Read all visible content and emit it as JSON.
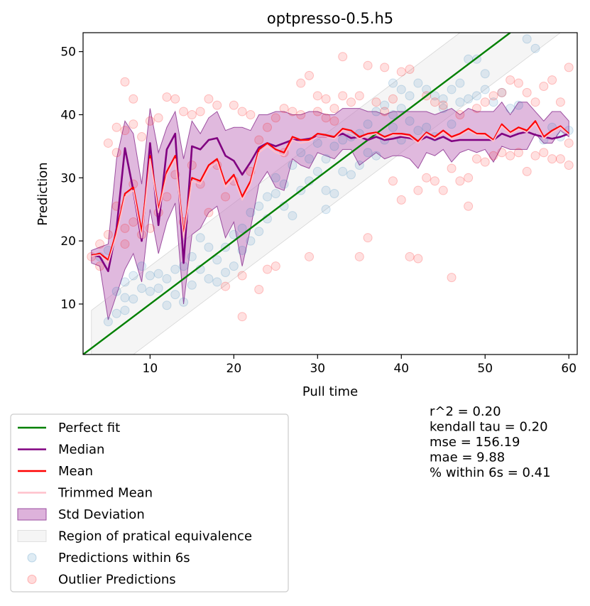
{
  "chart_data": {
    "type": "scatter",
    "title": "optpresso-0.5.h5",
    "xlabel": "Pull time",
    "ylabel": "Prediction",
    "xlim": [
      2,
      61
    ],
    "ylim": [
      2,
      53
    ],
    "xticks": [
      "10",
      "20",
      "30",
      "40",
      "50",
      "60"
    ],
    "xtick_values": [
      10,
      20,
      30,
      40,
      50,
      60
    ],
    "yticks": [
      "10",
      "20",
      "30",
      "40",
      "50"
    ],
    "ytick_values": [
      10,
      20,
      30,
      40,
      50
    ],
    "grid": false,
    "legend_position": "below-left",
    "equivalence_margin": 6,
    "colors": {
      "perfect_fit": "#008000",
      "median": "#800080",
      "mean": "#ff0000",
      "trimmed_mean": "#ffc0cb",
      "std_fill": "#c77fc3",
      "rope_fill": "#ececec",
      "within": "#1f77b4",
      "outlier": "#ff0000"
    },
    "stats": [
      "r^2 = 0.20",
      "kendall tau = 0.20",
      "mse = 156.19",
      "mae = 9.88",
      "% within 6s = 0.41"
    ],
    "legend": [
      {
        "label": "Perfect fit",
        "kind": "line",
        "color": "#008000"
      },
      {
        "label": "Median",
        "kind": "line",
        "color": "#800080"
      },
      {
        "label": "Mean",
        "kind": "line",
        "color": "#ff0000"
      },
      {
        "label": "Trimmed Mean",
        "kind": "line",
        "color": "#ffc0cb"
      },
      {
        "label": "Std Deviation",
        "kind": "patch",
        "color": "#c77fc3"
      },
      {
        "label": "Region of pratical equivalence",
        "kind": "patch",
        "color": "#ececec"
      },
      {
        "label": "Predictions within 6s",
        "kind": "marker",
        "color": "#1f77b4"
      },
      {
        "label": "Outlier Predictions",
        "kind": "marker",
        "color": "#ff0000"
      }
    ],
    "series_lines": {
      "x": [
        3,
        4,
        5,
        6,
        7,
        8,
        9,
        10,
        11,
        12,
        13,
        14,
        15,
        16,
        17,
        18,
        19,
        20,
        21,
        22,
        23,
        24,
        25,
        26,
        27,
        28,
        29,
        30,
        31,
        32,
        33,
        34,
        35,
        36,
        37,
        38,
        39,
        40,
        41,
        42,
        43,
        44,
        45,
        46,
        47,
        48,
        49,
        50,
        51,
        52,
        53,
        54,
        55,
        56,
        57,
        58,
        59,
        60
      ],
      "median": [
        17.8,
        17.5,
        15.2,
        22.0,
        34.7,
        28.0,
        20.0,
        35.5,
        22.5,
        34.5,
        37.0,
        16.5,
        35.0,
        34.5,
        36.0,
        36.3,
        33.5,
        32.7,
        30.5,
        32.5,
        34.8,
        35.5,
        35.0,
        35.5,
        36.0,
        36.0,
        36.2,
        36.5,
        36.5,
        36.5,
        37.0,
        36.3,
        36.5,
        36.0,
        36.5,
        36.0,
        36.2,
        36.5,
        36.3,
        35.8,
        36.5,
        36.0,
        36.5,
        35.8,
        36.0,
        36.0,
        36.0,
        36.0,
        36.0,
        37.0,
        36.5,
        37.0,
        37.3,
        36.8,
        36.5,
        36.2,
        36.5,
        37.0
      ],
      "mean": [
        17.7,
        18.0,
        17.0,
        21.5,
        27.5,
        28.5,
        21.5,
        33.5,
        25.0,
        31.0,
        33.5,
        21.0,
        30.0,
        29.5,
        32.0,
        33.0,
        29.0,
        30.5,
        27.0,
        29.5,
        34.5,
        35.5,
        34.5,
        34.0,
        36.5,
        36.0,
        36.0,
        37.0,
        36.8,
        36.5,
        37.8,
        37.5,
        36.5,
        37.0,
        37.2,
        36.5,
        37.0,
        37.0,
        36.8,
        35.8,
        37.2,
        36.5,
        37.5,
        36.5,
        37.0,
        37.8,
        37.0,
        37.0,
        36.0,
        38.5,
        37.2,
        38.0,
        37.5,
        39.0,
        36.5,
        37.5,
        38.2,
        37.0
      ],
      "trimmed_mean": [
        17.6,
        17.8,
        16.5,
        21.0,
        27.0,
        28.0,
        20.5,
        33.0,
        24.5,
        30.5,
        33.0,
        20.5,
        29.5,
        29.0,
        31.5,
        32.5,
        28.5,
        30.0,
        26.5,
        29.0,
        34.0,
        35.0,
        34.0,
        33.5,
        36.0,
        35.5,
        35.8,
        36.5,
        36.5,
        36.2,
        37.5,
        37.0,
        36.2,
        36.7,
        37.0,
        36.2,
        36.8,
        36.7,
        36.5,
        35.5,
        37.0,
        36.2,
        37.2,
        36.2,
        36.7,
        37.5,
        36.8,
        36.7,
        35.8,
        38.2,
        37.0,
        37.7,
        37.2,
        38.6,
        36.2,
        37.2,
        38.0,
        36.8
      ],
      "std_upper": [
        18.5,
        19.0,
        19.5,
        33.0,
        39.0,
        37.0,
        29.0,
        41.0,
        34.0,
        38.0,
        40.5,
        33.0,
        39.0,
        37.0,
        39.5,
        40.5,
        37.5,
        38.0,
        38.0,
        37.5,
        40.0,
        40.0,
        40.5,
        40.5,
        40.0,
        40.0,
        40.5,
        40.5,
        40.0,
        40.0,
        41.0,
        41.0,
        41.0,
        40.5,
        40.5,
        40.0,
        40.5,
        40.5,
        40.5,
        40.5,
        40.5,
        40.0,
        40.5,
        41.0,
        40.0,
        41.0,
        40.5,
        40.5,
        40.5,
        42.0,
        40.0,
        42.0,
        42.0,
        40.5,
        39.0,
        40.5,
        40.5,
        39.0
      ],
      "std_lower": [
        16.5,
        16.0,
        7.5,
        11.5,
        15.5,
        18.0,
        13.5,
        25.0,
        18.0,
        23.0,
        26.0,
        10.0,
        21.0,
        22.0,
        24.5,
        25.5,
        20.5,
        23.0,
        16.0,
        22.0,
        29.0,
        31.0,
        28.5,
        28.0,
        33.0,
        32.0,
        31.5,
        34.0,
        33.5,
        33.0,
        34.5,
        34.5,
        32.0,
        33.0,
        34.0,
        33.0,
        33.5,
        33.5,
        33.0,
        31.5,
        34.0,
        33.5,
        34.5,
        32.5,
        34.0,
        34.5,
        34.0,
        34.5,
        32.5,
        35.0,
        34.5,
        34.5,
        34.5,
        37.0,
        35.5,
        35.5,
        37.5,
        36.5
      ]
    },
    "within_points": [
      [
        4,
        17.5
      ],
      [
        5,
        7.2
      ],
      [
        5,
        18.5
      ],
      [
        6,
        8.5
      ],
      [
        6,
        12.0
      ],
      [
        7,
        9.0
      ],
      [
        7,
        11.0
      ],
      [
        7,
        13.5
      ],
      [
        8,
        10.8
      ],
      [
        8,
        14.5
      ],
      [
        9,
        12.5
      ],
      [
        9,
        16.0
      ],
      [
        10,
        12.0
      ],
      [
        10,
        14.5
      ],
      [
        11,
        12.5
      ],
      [
        11,
        14.8
      ],
      [
        12,
        9.8
      ],
      [
        12,
        14.0
      ],
      [
        13,
        11.5
      ],
      [
        13,
        15.5
      ],
      [
        14,
        10.3
      ],
      [
        14,
        16.0
      ],
      [
        15,
        13.0
      ],
      [
        15,
        17.5
      ],
      [
        16,
        15.5
      ],
      [
        16,
        20.5
      ],
      [
        17,
        14.0
      ],
      [
        17,
        19.0
      ],
      [
        18,
        13.5
      ],
      [
        18,
        17.0
      ],
      [
        19,
        15.0
      ],
      [
        19,
        19.0
      ],
      [
        20,
        16.0
      ],
      [
        20,
        21.0
      ],
      [
        21,
        18.5
      ],
      [
        21,
        22.0
      ],
      [
        22,
        20.0
      ],
      [
        22,
        24.5
      ],
      [
        23,
        21.5
      ],
      [
        23,
        25.5
      ],
      [
        24,
        27.0
      ],
      [
        24,
        23.5
      ],
      [
        25,
        27.5
      ],
      [
        25,
        30.0
      ],
      [
        26,
        25.5
      ],
      [
        26,
        29.0
      ],
      [
        27,
        24.0
      ],
      [
        27,
        32.0
      ],
      [
        28,
        28.0
      ],
      [
        28,
        34.0
      ],
      [
        29,
        29.5
      ],
      [
        29,
        33.0
      ],
      [
        30,
        31.0
      ],
      [
        30,
        35.5
      ],
      [
        31,
        25.0
      ],
      [
        31,
        28.0
      ],
      [
        31,
        33.0
      ],
      [
        32,
        27.5
      ],
      [
        32,
        35.0
      ],
      [
        33,
        31.0
      ],
      [
        33,
        36.0
      ],
      [
        34,
        30.5
      ],
      [
        34,
        36.5
      ],
      [
        35,
        32.0
      ],
      [
        35,
        37.0
      ],
      [
        36,
        34.0
      ],
      [
        36,
        38.5
      ],
      [
        37,
        33.5
      ],
      [
        37,
        40.5
      ],
      [
        38,
        36.0
      ],
      [
        38,
        41.5
      ],
      [
        39,
        38.0
      ],
      [
        39,
        40.0
      ],
      [
        39,
        45.0
      ],
      [
        40,
        36.0
      ],
      [
        40,
        41.0
      ],
      [
        40,
        44.0
      ],
      [
        41,
        39.0
      ],
      [
        41,
        43.0
      ],
      [
        42,
        37.5
      ],
      [
        42,
        45.0
      ],
      [
        43,
        38.0
      ],
      [
        43,
        44.0
      ],
      [
        44,
        36.5
      ],
      [
        44,
        43.0
      ],
      [
        45,
        41.0
      ],
      [
        45,
        42.5
      ],
      [
        46,
        38.5
      ],
      [
        46,
        44.0
      ],
      [
        47,
        42.0
      ],
      [
        47,
        45.0
      ],
      [
        48,
        42.5
      ],
      [
        48,
        48.8
      ],
      [
        49,
        43.0
      ],
      [
        49,
        48.8
      ],
      [
        50,
        44.0
      ],
      [
        50,
        46.5
      ],
      [
        51,
        42.0
      ],
      [
        52,
        43.5
      ],
      [
        53,
        41.0
      ],
      [
        54,
        41.5
      ],
      [
        55,
        52.0
      ],
      [
        56,
        50.5
      ],
      [
        57,
        36.0
      ],
      [
        58,
        38.0
      ],
      [
        59,
        36.5
      ],
      [
        60,
        37.5
      ]
    ],
    "outlier_points": [
      [
        3,
        17.5
      ],
      [
        4,
        16.0
      ],
      [
        4,
        19.5
      ],
      [
        5,
        21.0
      ],
      [
        5,
        35.5
      ],
      [
        6,
        25.5
      ],
      [
        6,
        34.0
      ],
      [
        6,
        38.0
      ],
      [
        7,
        19.5
      ],
      [
        7,
        22.0
      ],
      [
        7,
        37.5
      ],
      [
        7,
        45.2
      ],
      [
        8,
        23.0
      ],
      [
        8,
        29.0
      ],
      [
        8,
        38.5
      ],
      [
        8,
        42.5
      ],
      [
        9,
        21.0
      ],
      [
        9,
        36.5
      ],
      [
        10,
        22.0
      ],
      [
        10,
        39.0
      ],
      [
        11,
        24.5
      ],
      [
        11,
        39.5
      ],
      [
        12,
        27.0
      ],
      [
        12,
        42.8
      ],
      [
        13,
        30.5
      ],
      [
        13,
        42.5
      ],
      [
        14,
        23.0
      ],
      [
        14,
        40.5
      ],
      [
        15,
        32.0
      ],
      [
        15,
        40.0
      ],
      [
        16,
        29.0
      ],
      [
        16,
        40.5
      ],
      [
        17,
        24.5
      ],
      [
        17,
        42.5
      ],
      [
        18,
        32.0
      ],
      [
        18,
        41.5
      ],
      [
        19,
        12.8
      ],
      [
        19,
        27.0
      ],
      [
        20,
        29.5
      ],
      [
        20,
        41.5
      ],
      [
        21,
        8.0
      ],
      [
        21,
        14.5
      ],
      [
        21,
        40.5
      ],
      [
        22,
        31.0
      ],
      [
        22,
        40.0
      ],
      [
        23,
        12.3
      ],
      [
        23,
        36.0
      ],
      [
        24,
        15.5
      ],
      [
        24,
        38.0
      ],
      [
        25,
        16.0
      ],
      [
        25,
        39.5
      ],
      [
        26,
        34.0
      ],
      [
        26,
        41.0
      ],
      [
        27,
        40.5
      ],
      [
        28,
        40.0
      ],
      [
        28,
        45.0
      ],
      [
        29,
        17.5
      ],
      [
        29,
        46.2
      ],
      [
        30,
        40.5
      ],
      [
        30,
        43.0
      ],
      [
        31,
        42.5
      ],
      [
        31,
        39.5
      ],
      [
        32,
        39.0
      ],
      [
        32,
        41.0
      ],
      [
        33,
        49.2
      ],
      [
        33,
        43.0
      ],
      [
        34,
        42.0
      ],
      [
        35,
        17.5
      ],
      [
        35,
        43.0
      ],
      [
        36,
        20.5
      ],
      [
        36,
        47.8
      ],
      [
        37,
        42.0
      ],
      [
        38,
        47.5
      ],
      [
        38,
        40.5
      ],
      [
        39,
        29.5
      ],
      [
        39,
        42.5
      ],
      [
        40,
        26.5
      ],
      [
        40,
        46.8
      ],
      [
        41,
        17.5
      ],
      [
        41,
        47.2
      ],
      [
        42,
        17.2
      ],
      [
        42,
        28.0
      ],
      [
        43,
        30.0
      ],
      [
        43,
        43.0
      ],
      [
        44,
        29.5
      ],
      [
        44,
        42.0
      ],
      [
        45,
        28.0
      ],
      [
        45,
        41.5
      ],
      [
        46,
        14.2
      ],
      [
        46,
        31.5
      ],
      [
        47,
        29.5
      ],
      [
        47,
        40.0
      ],
      [
        48,
        25.5
      ],
      [
        48,
        30.0
      ],
      [
        49,
        33.0
      ],
      [
        49,
        41.0
      ],
      [
        50,
        32.5
      ],
      [
        50,
        42.0
      ],
      [
        51,
        33.5
      ],
      [
        51,
        43.0
      ],
      [
        52,
        34.0
      ],
      [
        52,
        43.5
      ],
      [
        53,
        33.5
      ],
      [
        53,
        45.5
      ],
      [
        54,
        34.0
      ],
      [
        54,
        45.0
      ],
      [
        55,
        31.0
      ],
      [
        55,
        43.5
      ],
      [
        56,
        33.5
      ],
      [
        56,
        42.0
      ],
      [
        57,
        34.0
      ],
      [
        57,
        44.5
      ],
      [
        58,
        33.0
      ],
      [
        58,
        45.5
      ],
      [
        59,
        33.0
      ],
      [
        59,
        42.0
      ],
      [
        60,
        32.0
      ],
      [
        60,
        47.5
      ],
      [
        60,
        35.5
      ]
    ]
  }
}
